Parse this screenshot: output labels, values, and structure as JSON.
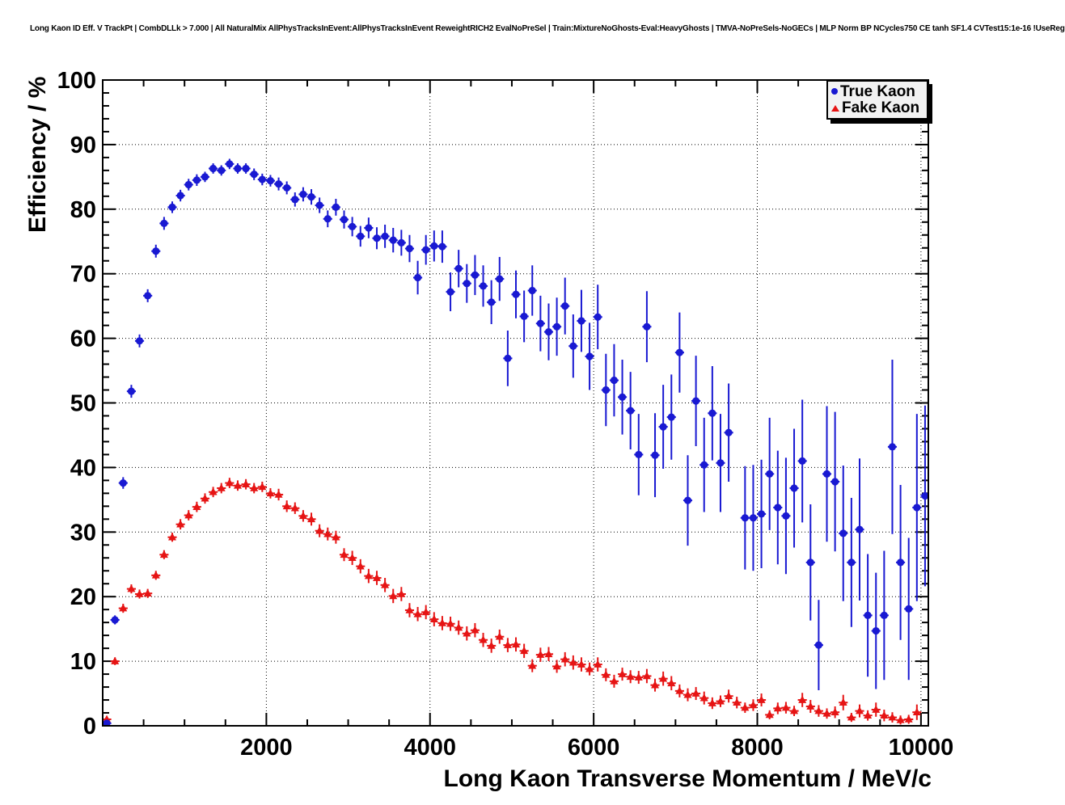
{
  "colors": {
    "true_kaon": "#1919d2",
    "fake_kaon": "#e61414",
    "frame": "#000000",
    "grid": "#000000",
    "background": "#ffffff",
    "legend_fill": "#f2f2f2"
  },
  "chart_data": {
    "type": "scatter",
    "title": "Long Kaon ID Eff. V TrackPt | CombDLLk > 7.000 | All NaturalMix AllPhysTracksInEvent:AllPhysTracksInEvent ReweightRICH2 EvalNoPreSel | Train:MixtureNoGhosts-Eval:HeavyGhosts | TMVA-NoPreSels-NoGECs | MLP Norm BP NCycles750 CE tanh SF1.4 CVTest15:1e-16 !UseReg",
    "xlabel": "Long Kaon Transverse Momentum / MeV/c",
    "ylabel": "Efficiency / %",
    "xlim": [
      0,
      10090
    ],
    "ylim": [
      0,
      100
    ],
    "x_ticks": [
      2000,
      4000,
      6000,
      8000,
      10000
    ],
    "y_ticks": [
      0,
      10,
      20,
      30,
      40,
      50,
      60,
      70,
      80,
      90,
      100
    ],
    "x_minor_step": 500,
    "y_minor_step": 2,
    "grid": "dotted",
    "legend_position": "top-right",
    "series": [
      {
        "name": "True Kaon",
        "marker": "circle",
        "color": "#1919d2",
        "xerr": 55,
        "x": [
          50,
          150,
          250,
          350,
          450,
          550,
          650,
          750,
          850,
          950,
          1050,
          1150,
          1250,
          1350,
          1450,
          1550,
          1650,
          1750,
          1850,
          1950,
          2050,
          2150,
          2250,
          2350,
          2450,
          2550,
          2650,
          2750,
          2850,
          2950,
          3050,
          3150,
          3250,
          3350,
          3450,
          3550,
          3650,
          3750,
          3850,
          3950,
          4050,
          4150,
          4250,
          4350,
          4450,
          4550,
          4650,
          4750,
          4850,
          4950,
          5050,
          5150,
          5250,
          5350,
          5450,
          5550,
          5650,
          5750,
          5850,
          5950,
          6050,
          6150,
          6250,
          6350,
          6450,
          6550,
          6650,
          6750,
          6850,
          6950,
          7050,
          7150,
          7250,
          7350,
          7450,
          7550,
          7650,
          7850,
          7950,
          8050,
          8150,
          8250,
          8350,
          8450,
          8550,
          8650,
          8750,
          8850,
          8950,
          9050,
          9150,
          9250,
          9350,
          9450,
          9550,
          9650,
          9750,
          9850,
          9950,
          10050
        ],
        "y": [
          0.4,
          16.4,
          37.6,
          51.8,
          59.6,
          66.6,
          73.5,
          77.8,
          80.3,
          82.1,
          83.8,
          84.5,
          85.0,
          86.3,
          86.0,
          87.0,
          86.3,
          86.3,
          85.4,
          84.6,
          84.4,
          83.9,
          83.3,
          81.5,
          82.3,
          81.9,
          80.6,
          78.5,
          80.3,
          78.4,
          77.3,
          75.8,
          77.1,
          75.5,
          75.8,
          75.2,
          74.8,
          73.9,
          69.4,
          73.7,
          74.3,
          74.2,
          67.2,
          70.8,
          68.5,
          69.8,
          68.1,
          65.6,
          69.2,
          56.9,
          66.8,
          63.4,
          67.4,
          62.3,
          61.0,
          61.8,
          65.0,
          58.8,
          62.7,
          57.2,
          63.3,
          52.0,
          53.5,
          50.9,
          48.8,
          42.0,
          61.8,
          41.9,
          46.3,
          47.8,
          57.8,
          34.9,
          50.3,
          40.4,
          48.4,
          40.7,
          45.4,
          32.2,
          32.2,
          32.8,
          39.0,
          33.8,
          32.5,
          36.8,
          41.0,
          25.3,
          12.5,
          39.0,
          37.8,
          29.8,
          25.3,
          30.4,
          17.1,
          14.7,
          17.1,
          43.2,
          25.3,
          18.1,
          33.8,
          35.6
        ],
        "yerr": [
          0.3,
          0.7,
          0.9,
          1.0,
          1.0,
          1.0,
          1.0,
          1.0,
          0.9,
          0.9,
          0.9,
          0.9,
          0.8,
          0.8,
          0.8,
          0.8,
          0.8,
          0.8,
          0.9,
          0.9,
          0.9,
          1.0,
          1.0,
          1.1,
          1.1,
          1.2,
          1.2,
          1.3,
          1.3,
          1.4,
          1.5,
          1.6,
          1.6,
          1.7,
          1.8,
          1.9,
          2.0,
          2.1,
          2.6,
          2.3,
          2.4,
          2.5,
          3.0,
          2.9,
          3.0,
          3.1,
          3.2,
          3.4,
          3.4,
          4.3,
          3.7,
          4.0,
          3.9,
          4.3,
          4.4,
          4.5,
          4.4,
          4.9,
          4.8,
          5.2,
          5.0,
          5.6,
          5.6,
          5.8,
          6.0,
          6.3,
          5.5,
          6.5,
          6.5,
          6.6,
          6.2,
          7.0,
          7.0,
          7.3,
          7.3,
          7.6,
          7.6,
          8.0,
          8.2,
          8.4,
          8.7,
          8.8,
          9.0,
          9.2,
          9.5,
          9.0,
          7.0,
          10.5,
          10.8,
          10.5,
          10.0,
          11.0,
          9.5,
          9.0,
          10.0,
          13.5,
          12.0,
          11.0,
          14.5,
          14.0
        ]
      },
      {
        "name": "Fake Kaon",
        "marker": "triangle",
        "color": "#e61414",
        "xerr": 55,
        "x": [
          50,
          150,
          250,
          350,
          450,
          550,
          650,
          750,
          850,
          950,
          1050,
          1150,
          1250,
          1350,
          1450,
          1550,
          1650,
          1750,
          1850,
          1950,
          2050,
          2150,
          2250,
          2350,
          2450,
          2550,
          2650,
          2750,
          2850,
          2950,
          3050,
          3150,
          3250,
          3350,
          3450,
          3550,
          3650,
          3750,
          3850,
          3950,
          4050,
          4150,
          4250,
          4350,
          4450,
          4550,
          4650,
          4750,
          4850,
          4950,
          5050,
          5150,
          5250,
          5350,
          5450,
          5550,
          5650,
          5750,
          5850,
          5950,
          6050,
          6150,
          6250,
          6350,
          6450,
          6550,
          6650,
          6750,
          6850,
          6950,
          7050,
          7150,
          7250,
          7350,
          7450,
          7550,
          7650,
          7750,
          7850,
          7950,
          8050,
          8150,
          8250,
          8350,
          8450,
          8550,
          8650,
          8750,
          8850,
          8950,
          9050,
          9150,
          9250,
          9350,
          9450,
          9550,
          9650,
          9750,
          9850,
          9950
        ],
        "y": [
          1.0,
          10.0,
          18.2,
          21.2,
          20.4,
          20.5,
          23.3,
          26.5,
          29.2,
          31.2,
          32.6,
          33.9,
          35.2,
          36.2,
          36.8,
          37.6,
          37.2,
          37.4,
          36.8,
          37.0,
          36.0,
          35.8,
          34.0,
          33.7,
          32.5,
          32.0,
          30.2,
          29.7,
          29.2,
          26.5,
          26.0,
          24.7,
          23.2,
          22.9,
          21.8,
          20.1,
          20.4,
          17.9,
          17.3,
          17.6,
          16.5,
          15.9,
          15.8,
          15.2,
          14.3,
          14.8,
          13.3,
          12.4,
          13.8,
          12.5,
          12.6,
          11.6,
          9.3,
          11.0,
          11.1,
          9.2,
          10.3,
          9.8,
          9.5,
          8.8,
          9.5,
          7.9,
          6.9,
          8.0,
          7.6,
          7.5,
          7.7,
          6.3,
          7.3,
          6.6,
          5.4,
          4.8,
          5.0,
          4.3,
          3.5,
          3.8,
          4.6,
          3.6,
          2.8,
          3.2,
          4.0,
          1.7,
          2.7,
          2.8,
          2.3,
          4.0,
          3.0,
          2.3,
          1.9,
          2.1,
          3.6,
          1.3,
          2.3,
          1.6,
          2.5,
          1.6,
          1.3,
          0.9,
          1.0,
          2.1
        ],
        "yerr": [
          0.4,
          0.6,
          0.7,
          0.7,
          0.7,
          0.7,
          0.7,
          0.7,
          0.7,
          0.8,
          0.8,
          0.8,
          0.8,
          0.8,
          0.8,
          0.8,
          0.8,
          0.8,
          0.8,
          0.8,
          0.8,
          0.9,
          0.9,
          0.9,
          0.9,
          1.0,
          1.0,
          1.0,
          1.0,
          1.0,
          1.1,
          1.1,
          1.1,
          1.1,
          1.1,
          1.1,
          1.1,
          1.1,
          1.1,
          1.1,
          1.1,
          1.1,
          1.1,
          1.1,
          1.1,
          1.1,
          1.1,
          1.1,
          1.1,
          1.1,
          1.1,
          1.1,
          1.0,
          1.1,
          1.1,
          1.0,
          1.1,
          1.1,
          1.1,
          1.0,
          1.1,
          1.0,
          1.0,
          1.0,
          1.0,
          1.0,
          1.1,
          1.0,
          1.1,
          1.1,
          1.0,
          1.0,
          1.0,
          1.0,
          0.9,
          0.9,
          1.0,
          0.9,
          0.8,
          0.9,
          1.0,
          0.7,
          0.9,
          0.9,
          0.8,
          1.1,
          1.0,
          0.9,
          0.8,
          0.9,
          1.2,
          0.7,
          1.0,
          0.8,
          1.1,
          0.9,
          0.8,
          0.7,
          0.7,
          1.2
        ]
      }
    ]
  }
}
